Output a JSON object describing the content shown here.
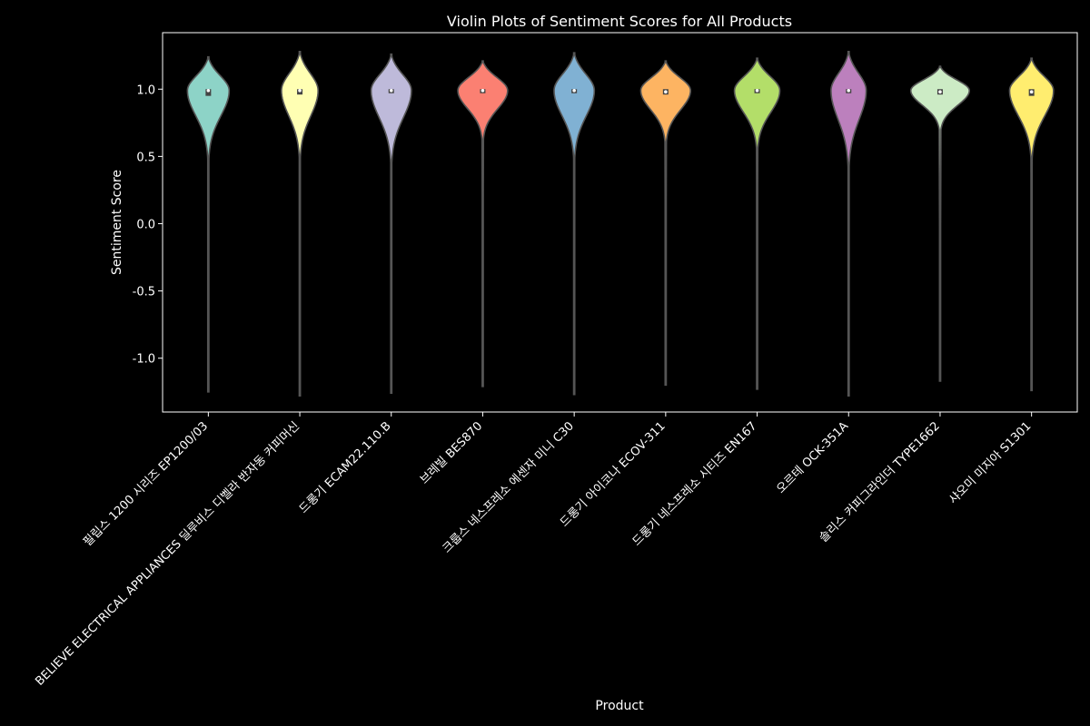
{
  "chart_data": {
    "type": "violin",
    "title": "Violin Plots of Sentiment Scores for All Products",
    "xlabel": "Product",
    "ylabel": "Sentiment Score",
    "ylim": [
      -1.4,
      1.42
    ],
    "yticks": [
      {
        "value": 1.0,
        "label": "1.0"
      },
      {
        "value": 0.5,
        "label": "0.5"
      },
      {
        "value": 0.0,
        "label": "0.0"
      },
      {
        "value": -0.5,
        "label": "-0.5"
      },
      {
        "value": -1.0,
        "label": "-1.0"
      }
    ],
    "grid": false,
    "categories": [
      {
        "name": "필립스 1200 시리즈 EP1200/03",
        "color": "#8dd3c7",
        "min": -1.25,
        "max": 1.24,
        "peak": 0.99,
        "width": 0.57,
        "q1": 0.95,
        "q3": 1.0,
        "median": 0.99,
        "neck": 0.7
      },
      {
        "name": "BELIEVE ELECTRICAL APPLIANCES 딜루비스 디벨라 반자동 커피머신",
        "color": "#ffffb3",
        "min": -1.28,
        "max": 1.28,
        "peak": 0.99,
        "width": 0.5,
        "q1": 0.96,
        "q3": 1.0,
        "median": 0.99,
        "neck": 0.7
      },
      {
        "name": "드롱기 ECAM22.110.B",
        "color": "#bebada",
        "min": -1.26,
        "max": 1.26,
        "peak": 0.99,
        "width": 0.55,
        "q1": 0.97,
        "q3": 1.0,
        "median": 0.99,
        "neck": 0.68
      },
      {
        "name": "브레빌 BES870",
        "color": "#fb8072",
        "min": -1.21,
        "max": 1.21,
        "peak": 0.99,
        "width": 0.68,
        "q1": 0.97,
        "q3": 1.0,
        "median": 0.99,
        "neck": 0.78
      },
      {
        "name": "크룹스 네스프레소 에센자 미니 C30",
        "color": "#80b1d3",
        "min": -1.27,
        "max": 1.27,
        "peak": 0.99,
        "width": 0.55,
        "q1": 0.97,
        "q3": 1.0,
        "median": 0.99,
        "neck": 0.7
      },
      {
        "name": "드롱기 아이코나 ECOV-311",
        "color": "#fdb462",
        "min": -1.2,
        "max": 1.21,
        "peak": 0.99,
        "width": 0.68,
        "q1": 0.96,
        "q3": 1.0,
        "median": 0.98,
        "neck": 0.77
      },
      {
        "name": "드롱기 네스프레소 시티즈 EN167",
        "color": "#b3de69",
        "min": -1.23,
        "max": 1.23,
        "peak": 0.99,
        "width": 0.62,
        "q1": 0.97,
        "q3": 1.0,
        "median": 0.99,
        "neck": 0.74
      },
      {
        "name": "오르테 OCK-351A",
        "color": "#bc80bd",
        "min": -1.28,
        "max": 1.28,
        "peak": 0.99,
        "width": 0.48,
        "q1": 0.97,
        "q3": 1.0,
        "median": 0.99,
        "neck": 0.66
      },
      {
        "name": "솔리스 커피그라인더 TYPE1662",
        "color": "#ccebc5",
        "min": -1.17,
        "max": 1.17,
        "peak": 0.99,
        "width": 0.8,
        "q1": 0.96,
        "q3": 1.0,
        "median": 0.98,
        "neck": 0.82
      },
      {
        "name": "샤오미 미지아 S1301",
        "color": "#ffed6f",
        "min": -1.24,
        "max": 1.23,
        "peak": 0.99,
        "width": 0.6,
        "q1": 0.95,
        "q3": 1.0,
        "median": 0.98,
        "neck": 0.7
      }
    ]
  }
}
